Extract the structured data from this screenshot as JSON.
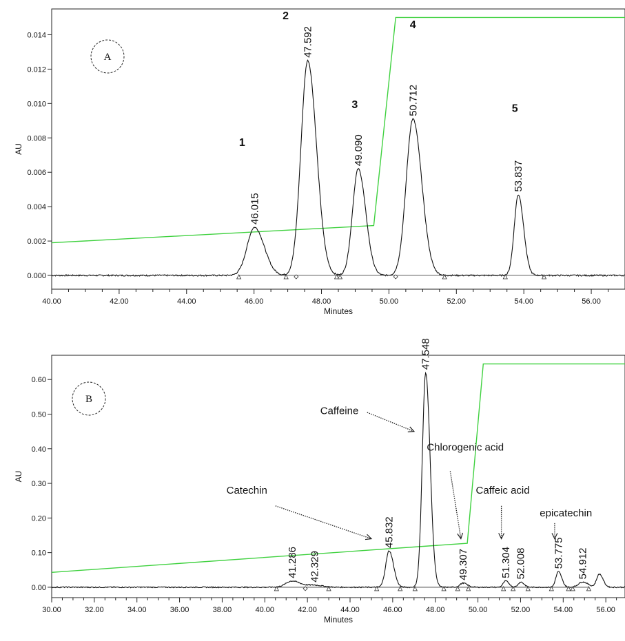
{
  "chart_data": [
    {
      "type": "line",
      "panel_label": "A",
      "xlabel": "Minutes",
      "ylabel": "AU",
      "xlim": [
        40,
        57
      ],
      "ylim": [
        -0.0008,
        0.0155
      ],
      "xticks": [
        "40.00",
        "42.00",
        "44.00",
        "46.00",
        "48.00",
        "50.00",
        "52.00",
        "54.00",
        "56.00"
      ],
      "yticks": [
        "0.000",
        "0.002",
        "0.004",
        "0.006",
        "0.008",
        "0.010",
        "0.012",
        "0.014"
      ],
      "peaks": [
        {
          "rt": 46.015,
          "rt_label": "46.015",
          "height": 0.0028,
          "width": 0.22,
          "number": "1"
        },
        {
          "rt": 47.592,
          "rt_label": "47.592",
          "height": 0.0125,
          "width": 0.2,
          "number": "2"
        },
        {
          "rt": 49.09,
          "rt_label": "49.090",
          "height": 0.0062,
          "width": 0.17,
          "number": "3"
        },
        {
          "rt": 50.712,
          "rt_label": "50.712",
          "height": 0.0091,
          "width": 0.2,
          "number": "4"
        },
        {
          "rt": 53.837,
          "rt_label": "53.837",
          "height": 0.0047,
          "width": 0.12,
          "number": "5"
        }
      ],
      "gradient_line": {
        "color": "#3fd13f",
        "points": [
          [
            40,
            0.0019
          ],
          [
            49.55,
            0.0029
          ],
          [
            50.2,
            0.015
          ],
          [
            57,
            0.015
          ]
        ]
      },
      "baseline_markers": [
        {
          "x": 45.55,
          "shape": "triangle"
        },
        {
          "x": 46.95,
          "shape": "triangle"
        },
        {
          "x": 47.25,
          "shape": "diamond"
        },
        {
          "x": 48.45,
          "shape": "triangle"
        },
        {
          "x": 48.55,
          "shape": "triangle"
        },
        {
          "x": 50.2,
          "shape": "diamond"
        },
        {
          "x": 51.65,
          "shape": "triangle"
        },
        {
          "x": 53.45,
          "shape": "triangle"
        },
        {
          "x": 54.6,
          "shape": "triangle"
        }
      ]
    },
    {
      "type": "line",
      "panel_label": "B",
      "xlabel": "Minutes",
      "ylabel": "AU",
      "xlim": [
        30,
        56.9
      ],
      "ylim": [
        -0.03,
        0.67
      ],
      "xticks": [
        "30.00",
        "32.00",
        "34.00",
        "36.00",
        "38.00",
        "40.00",
        "42.00",
        "44.00",
        "46.00",
        "48.00",
        "50.00",
        "52.00",
        "54.00",
        "56.00"
      ],
      "yticks": [
        "0.00",
        "0.10",
        "0.20",
        "0.30",
        "0.40",
        "0.50",
        "0.60"
      ],
      "peaks": [
        {
          "rt": 41.286,
          "rt_label": "41.286",
          "height": 0.018,
          "width": 0.3
        },
        {
          "rt": 42.329,
          "rt_label": "42.329",
          "height": 0.006,
          "width": 0.3
        },
        {
          "rt": 45.832,
          "rt_label": "45.832",
          "height": 0.105,
          "width": 0.16
        },
        {
          "rt": 47.548,
          "rt_label": "47.548",
          "height": 0.62,
          "width": 0.16
        },
        {
          "rt": 49.307,
          "rt_label": "49.307",
          "height": 0.012,
          "width": 0.15
        },
        {
          "rt": 51.304,
          "rt_label": "51.304",
          "height": 0.018,
          "width": 0.12
        },
        {
          "rt": 52.008,
          "rt_label": "52.008",
          "height": 0.015,
          "width": 0.12
        },
        {
          "rt": 53.775,
          "rt_label": "53.775",
          "height": 0.045,
          "width": 0.12
        },
        {
          "rt": 54.912,
          "rt_label": "54.912",
          "height": 0.015,
          "width": 0.2
        },
        {
          "rt": 55.7,
          "rt_label": "",
          "height": 0.038,
          "width": 0.13
        }
      ],
      "annotations": [
        {
          "text": "Caffeine",
          "text_at": [
            42.6,
            0.5
          ],
          "arrow_from": [
            44.8,
            0.505
          ],
          "arrow_to": [
            47.0,
            0.45
          ]
        },
        {
          "text": "Chlorogenic acid",
          "text_at": [
            47.6,
            0.395
          ],
          "arrow_from": [
            48.7,
            0.335
          ],
          "arrow_to": [
            49.2,
            0.14
          ]
        },
        {
          "text": "Caffeic acid",
          "text_at": [
            49.9,
            0.27
          ],
          "arrow_from": [
            51.1,
            0.235
          ],
          "arrow_to": [
            51.1,
            0.14
          ]
        },
        {
          "text": "Catechin",
          "text_at": [
            38.2,
            0.27
          ],
          "arrow_from": [
            40.5,
            0.235
          ],
          "arrow_to": [
            45.0,
            0.14
          ]
        },
        {
          "text": "epicatechin",
          "text_at": [
            52.9,
            0.205
          ],
          "arrow_from": [
            53.6,
            0.185
          ],
          "arrow_to": [
            53.6,
            0.14
          ]
        }
      ],
      "gradient_line": {
        "color": "#3fd13f",
        "points": [
          [
            30,
            0.043
          ],
          [
            49.5,
            0.127
          ],
          [
            50.25,
            0.645
          ],
          [
            56.9,
            0.645
          ]
        ]
      },
      "baseline_markers": [
        {
          "x": 40.55,
          "shape": "triangle"
        },
        {
          "x": 41.9,
          "shape": "diamond"
        },
        {
          "x": 43.0,
          "shape": "triangle"
        },
        {
          "x": 45.25,
          "shape": "triangle"
        },
        {
          "x": 46.35,
          "shape": "triangle"
        },
        {
          "x": 47.05,
          "shape": "triangle"
        },
        {
          "x": 48.4,
          "shape": "triangle"
        },
        {
          "x": 49.05,
          "shape": "triangle"
        },
        {
          "x": 49.55,
          "shape": "triangle"
        },
        {
          "x": 51.2,
          "shape": "triangle"
        },
        {
          "x": 51.65,
          "shape": "triangle"
        },
        {
          "x": 52.35,
          "shape": "triangle"
        },
        {
          "x": 53.45,
          "shape": "triangle"
        },
        {
          "x": 54.25,
          "shape": "triangle"
        },
        {
          "x": 54.45,
          "shape": "triangle"
        },
        {
          "x": 55.2,
          "shape": "triangle"
        }
      ]
    }
  ]
}
